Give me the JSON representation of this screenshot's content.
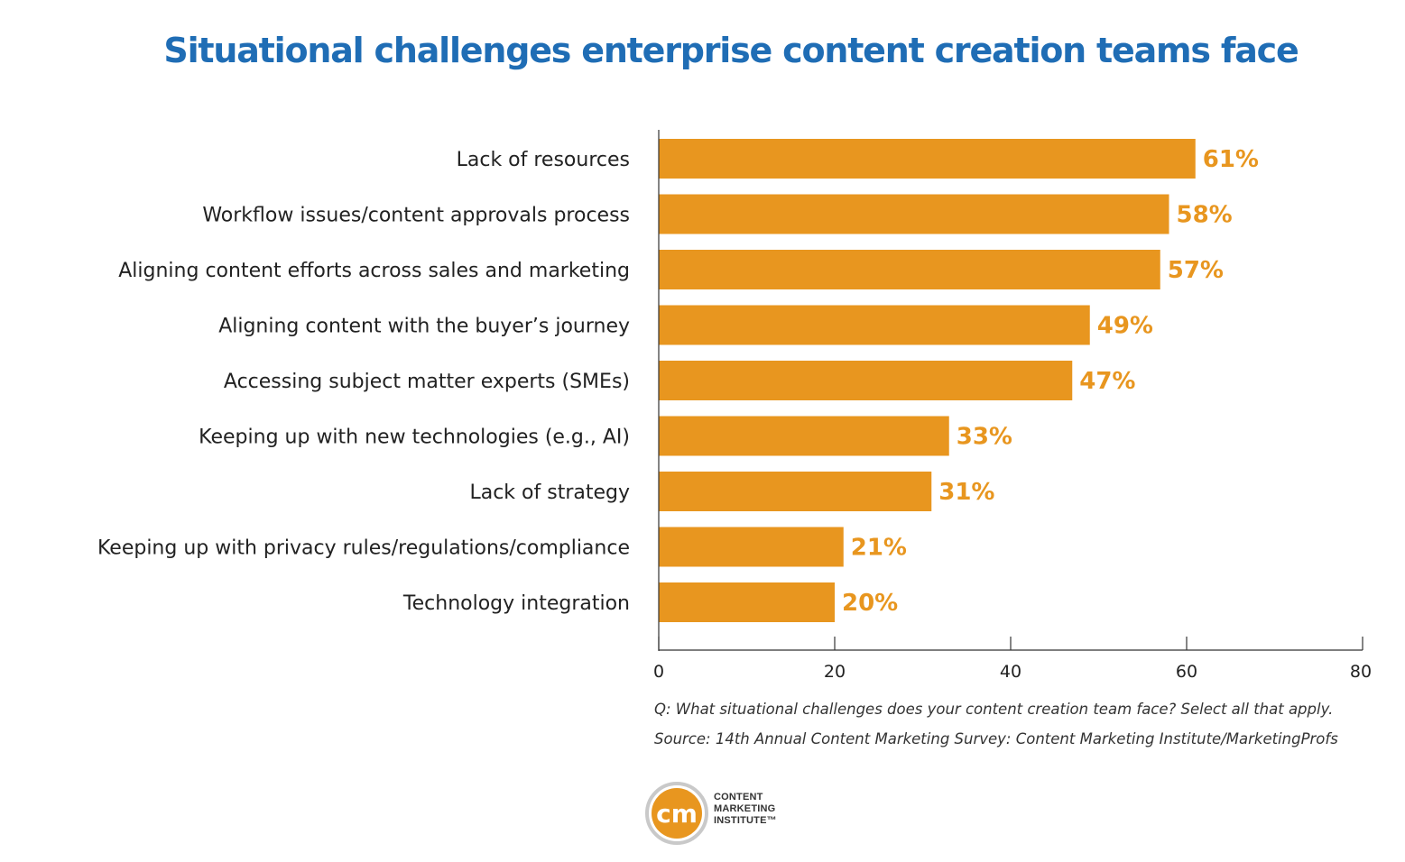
{
  "chart_data": {
    "type": "bar",
    "orientation": "horizontal",
    "title": "Situational challenges enterprise content creation teams face",
    "categories": [
      "Lack of resources",
      "Workflow issues/content approvals process",
      "Aligning content efforts across sales and marketing",
      "Aligning content with the buyer’s journey",
      "Accessing subject matter experts (SMEs)",
      "Keeping up with new technologies (e.g., AI)",
      "Lack of strategy",
      "Keeping up with privacy rules/regulations/compliance",
      "Technology integration"
    ],
    "values": [
      61,
      58,
      57,
      49,
      47,
      33,
      31,
      21,
      20
    ],
    "value_labels": [
      "61%",
      "58%",
      "57%",
      "49%",
      "47%",
      "33%",
      "31%",
      "21%",
      "20%"
    ],
    "xlim": [
      0,
      80
    ],
    "xticks": [
      0,
      20,
      40,
      60,
      80
    ],
    "grid": false,
    "bar_color": "#e8961f"
  },
  "notes": {
    "question": "Q: What situational challenges does your content creation team face? Select all that apply.",
    "source": "Source: 14th Annual Content Marketing Survey: Content Marketing Institute/MarketingProfs"
  },
  "logo": {
    "mark": "cm",
    "lines": [
      "CONTENT",
      "MARKETING",
      "INSTITUTE™"
    ],
    "color": "#e8961f"
  }
}
